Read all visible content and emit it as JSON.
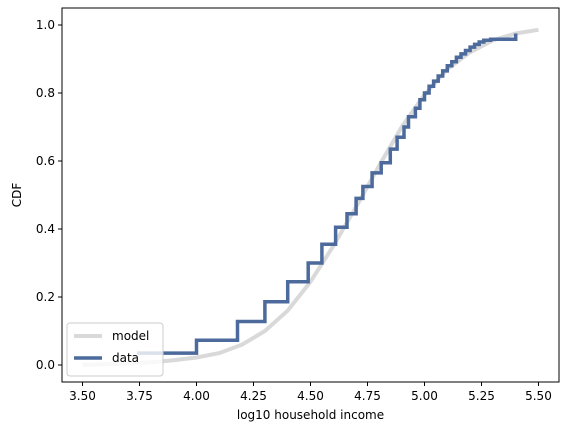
{
  "chart_data": {
    "type": "line",
    "xlabel": "log10 household income",
    "ylabel": "CDF",
    "xlim": [
      3.41,
      5.59
    ],
    "ylim": [
      -0.05,
      1.05
    ],
    "xticks": [
      "3.50",
      "3.75",
      "4.00",
      "4.25",
      "4.50",
      "4.75",
      "5.00",
      "5.25",
      "5.50"
    ],
    "yticks": [
      "0.0",
      "0.2",
      "0.4",
      "0.6",
      "0.8",
      "1.0"
    ],
    "xtick_values": [
      3.5,
      3.75,
      4.0,
      4.25,
      4.5,
      4.75,
      5.0,
      5.25,
      5.5
    ],
    "ytick_values": [
      0.0,
      0.2,
      0.4,
      0.6,
      0.8,
      1.0
    ],
    "grid": false,
    "legend_position": "lower-left",
    "series": [
      {
        "name": "model",
        "color": "#d9d9d9",
        "style": "smooth",
        "x": [
          3.5,
          3.6,
          3.7,
          3.8,
          3.9,
          4.0,
          4.1,
          4.2,
          4.3,
          4.4,
          4.5,
          4.6,
          4.7,
          4.8,
          4.9,
          5.0,
          5.1,
          5.2,
          5.3,
          5.4,
          5.5
        ],
        "y": [
          0.001,
          0.002,
          0.004,
          0.008,
          0.014,
          0.022,
          0.035,
          0.06,
          0.1,
          0.16,
          0.245,
          0.35,
          0.465,
          0.585,
          0.7,
          0.795,
          0.87,
          0.92,
          0.955,
          0.975,
          0.986
        ]
      },
      {
        "name": "data",
        "color": "#4c6a9c",
        "style": "step",
        "x": [
          3.74,
          4.0,
          4.18,
          4.3,
          4.4,
          4.49,
          4.55,
          4.61,
          4.66,
          4.7,
          4.73,
          4.77,
          4.81,
          4.85,
          4.88,
          4.91,
          4.93,
          4.96,
          4.98,
          5.0,
          5.02,
          5.04,
          5.06,
          5.08,
          5.1,
          5.12,
          5.14,
          5.16,
          5.18,
          5.2,
          5.22,
          5.24,
          5.26,
          5.29,
          5.4
        ],
        "y": [
          0.035,
          0.073,
          0.128,
          0.186,
          0.245,
          0.3,
          0.355,
          0.405,
          0.445,
          0.49,
          0.525,
          0.565,
          0.595,
          0.635,
          0.67,
          0.7,
          0.73,
          0.755,
          0.78,
          0.8,
          0.82,
          0.835,
          0.85,
          0.865,
          0.88,
          0.892,
          0.905,
          0.915,
          0.925,
          0.935,
          0.943,
          0.95,
          0.955,
          0.958,
          0.975
        ]
      }
    ]
  }
}
